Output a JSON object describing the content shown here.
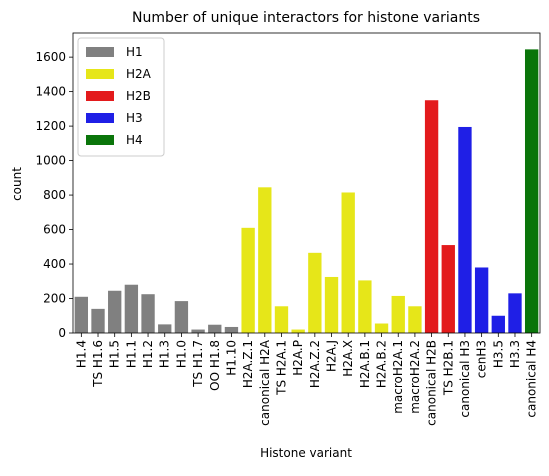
{
  "chart_data": {
    "type": "bar",
    "title": "Number of unique interactors for histone variants",
    "xlabel": "Histone variant",
    "ylabel": "count",
    "ylim": [
      0,
      1740
    ],
    "yticks": [
      0,
      200,
      400,
      600,
      800,
      1000,
      1200,
      1400,
      1600
    ],
    "legend_position": "top-left",
    "colors": {
      "H1": "#808080",
      "H2A": "#e6e619",
      "H2B": "#e31a1c",
      "H3": "#1f1fe6",
      "H4": "#0a750a"
    },
    "legend": [
      "H1",
      "H2A",
      "H2B",
      "H3",
      "H4"
    ],
    "categories": [
      "H1.4",
      "TS H1.6",
      "H1.5",
      "H1.1",
      "H1.2",
      "H1.3",
      "H1.0",
      "TS H1.7",
      "OO H1.8",
      "H1.10",
      "H2A.Z.1",
      "canonical H2A",
      "TS H2A.1",
      "H2A.P",
      "H2A.Z.2",
      "H2A.J",
      "H2A.X",
      "H2A.B.1",
      "H2A.B.2",
      "macroH2A.1",
      "macroH2A.2",
      "canonical H2B",
      "TS H2B.1",
      "canonical H3",
      "cenH3",
      "H3.5",
      "H3.3",
      "canonical H4"
    ],
    "groups": [
      "H1",
      "H1",
      "H1",
      "H1",
      "H1",
      "H1",
      "H1",
      "H1",
      "H1",
      "H1",
      "H2A",
      "H2A",
      "H2A",
      "H2A",
      "H2A",
      "H2A",
      "H2A",
      "H2A",
      "H2A",
      "H2A",
      "H2A",
      "H2B",
      "H2B",
      "H3",
      "H3",
      "H3",
      "H3",
      "H4"
    ],
    "values": [
      210,
      140,
      245,
      280,
      225,
      50,
      185,
      20,
      48,
      35,
      610,
      845,
      155,
      20,
      465,
      325,
      815,
      305,
      55,
      215,
      155,
      1350,
      510,
      1195,
      380,
      100,
      230,
      1645
    ]
  }
}
